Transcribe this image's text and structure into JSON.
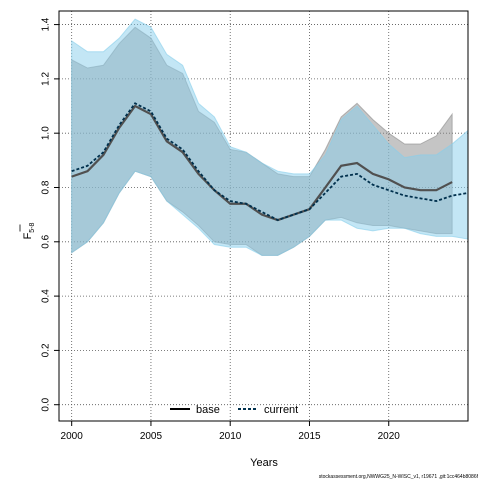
{
  "chart_data": {
    "type": "area",
    "xlabel": "Years",
    "ylabel_main": "F",
    "ylabel_sub": "5-8",
    "xlim": [
      1999.2,
      2025.0
    ],
    "ylim": [
      -0.06,
      1.45
    ],
    "xticks": [
      2000,
      2005,
      2010,
      2015,
      2020
    ],
    "yticks": [
      0.0,
      0.2,
      0.4,
      0.6,
      0.8,
      1.0,
      1.2,
      1.4
    ],
    "ytick_labels": [
      "0.0",
      "0.2",
      "0.4",
      "0.6",
      "0.8",
      "1.0",
      "1.2",
      "1.4"
    ],
    "grid": true,
    "legend_position": "bottom",
    "footer": "stockassessment.org,NWWG25_N-WISC_v1, r19671 ,git:1cc464b8086f",
    "series": [
      {
        "name": "base",
        "color": "#505050",
        "band_color": "#8c8c8c",
        "line_style": "solid",
        "x": [
          2000,
          2001,
          2002,
          2003,
          2004,
          2005,
          2006,
          2007,
          2008,
          2009,
          2010,
          2011,
          2012,
          2013,
          2014,
          2015,
          2016,
          2017,
          2018,
          2019,
          2020,
          2021,
          2022,
          2023,
          2024
        ],
        "values": [
          0.84,
          0.86,
          0.92,
          1.02,
          1.1,
          1.07,
          0.97,
          0.93,
          0.85,
          0.79,
          0.74,
          0.74,
          0.7,
          0.68,
          0.7,
          0.72,
          0.8,
          0.88,
          0.89,
          0.85,
          0.83,
          0.8,
          0.79,
          0.79,
          0.82
        ],
        "upper": [
          1.27,
          1.24,
          1.25,
          1.33,
          1.39,
          1.35,
          1.25,
          1.22,
          1.08,
          1.04,
          0.94,
          0.93,
          0.89,
          0.85,
          0.84,
          0.84,
          0.94,
          1.06,
          1.11,
          1.05,
          1.0,
          0.96,
          0.96,
          0.99,
          1.07
        ],
        "lower": [
          0.56,
          0.6,
          0.67,
          0.78,
          0.86,
          0.84,
          0.75,
          0.71,
          0.66,
          0.6,
          0.59,
          0.59,
          0.55,
          0.55,
          0.58,
          0.62,
          0.68,
          0.69,
          0.67,
          0.66,
          0.66,
          0.65,
          0.64,
          0.63,
          0.63
        ]
      },
      {
        "name": "current",
        "color": "#00304d",
        "band_color": "#87ceeb",
        "line_style": "dashed",
        "x": [
          2000,
          2001,
          2002,
          2003,
          2004,
          2005,
          2006,
          2007,
          2008,
          2009,
          2010,
          2011,
          2012,
          2013,
          2014,
          2015,
          2016,
          2017,
          2018,
          2019,
          2020,
          2021,
          2022,
          2023,
          2024,
          2025
        ],
        "values": [
          0.86,
          0.88,
          0.93,
          1.03,
          1.11,
          1.08,
          0.98,
          0.94,
          0.86,
          0.79,
          0.75,
          0.74,
          0.71,
          0.68,
          0.7,
          0.72,
          0.78,
          0.84,
          0.85,
          0.81,
          0.79,
          0.77,
          0.76,
          0.75,
          0.77,
          0.78
        ],
        "upper": [
          1.34,
          1.3,
          1.3,
          1.35,
          1.42,
          1.39,
          1.29,
          1.25,
          1.11,
          1.06,
          0.95,
          0.93,
          0.89,
          0.86,
          0.85,
          0.85,
          0.92,
          1.05,
          1.1,
          1.03,
          0.96,
          0.91,
          0.92,
          0.92,
          0.96,
          1.01
        ],
        "lower": [
          0.56,
          0.6,
          0.67,
          0.78,
          0.86,
          0.84,
          0.75,
          0.7,
          0.65,
          0.59,
          0.58,
          0.58,
          0.55,
          0.55,
          0.58,
          0.62,
          0.68,
          0.68,
          0.65,
          0.64,
          0.65,
          0.65,
          0.63,
          0.62,
          0.62,
          0.61
        ]
      }
    ]
  }
}
